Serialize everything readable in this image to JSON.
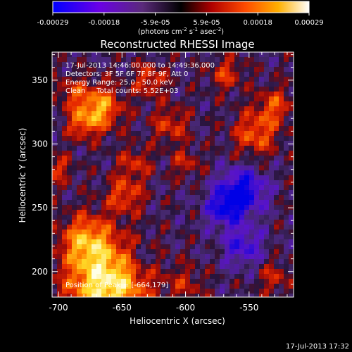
{
  "colorbar": {
    "ticks": [
      "-0.00029",
      "-0.00018",
      "-5.9e-05",
      "5.9e-05",
      "0.00018",
      "0.00029"
    ],
    "unit_prefix": "(photons cm",
    "unit_exp1": "-2",
    "unit_mid": " s",
    "unit_exp2": "-1",
    "unit_mid2": " asec",
    "unit_exp3": "-2",
    "unit_suffix": ")",
    "colors": [
      "#0000ff",
      "#6a00e6",
      "#7a2a9a",
      "#000000",
      "#d40000",
      "#ff6a00",
      "#ffd000",
      "#ffffff"
    ]
  },
  "chart_data": {
    "type": "heatmap",
    "title": "Reconstructed RHESSI Image",
    "xlabel": "Heliocentric X (arcsec)",
    "ylabel": "Heliocentric Y (arcsec)",
    "xlim": [
      -705,
      -515
    ],
    "ylim": [
      180,
      372
    ],
    "x_ticks": [
      "-700",
      "-650",
      "-600",
      "-550"
    ],
    "y_ticks": [
      "200",
      "250",
      "300",
      "350"
    ],
    "color_range": [
      -0.00029,
      0.00029
    ],
    "annotations": [
      "17-Jul-2013 14:46:00.000 to 14:49:36.000",
      "Detectors: 3F 5F 6F 7F 8F 9F, Att 0",
      "Energy Range: 25.0 - 50.0 keV",
      "Clean     Total counts: 5.52E+03"
    ],
    "peak_label": "Position of Peak = [-664,179]"
  },
  "timestamp": "17-Jul-2013 17:32"
}
